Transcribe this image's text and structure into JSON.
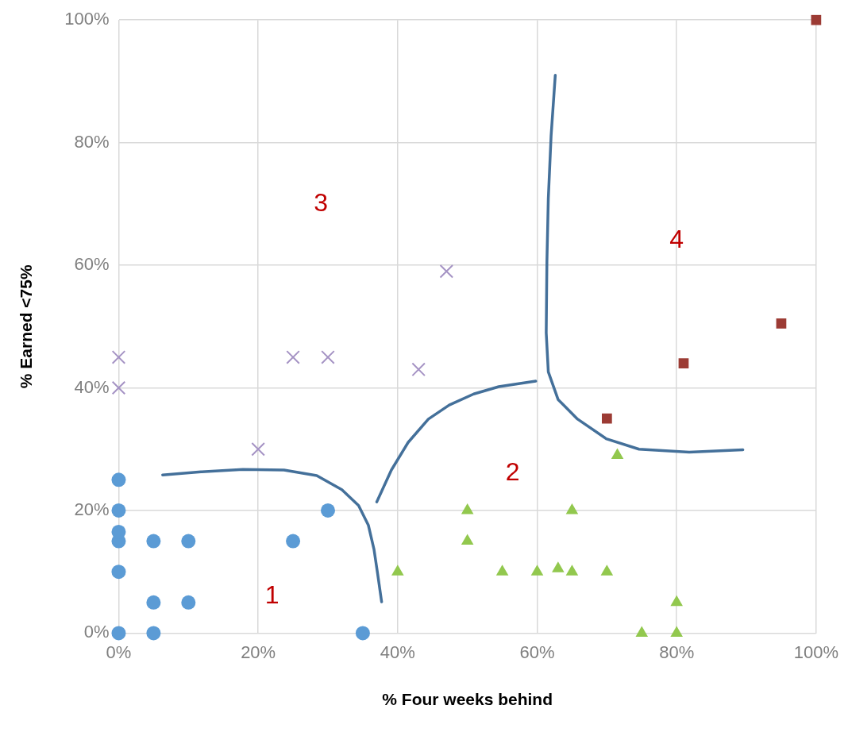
{
  "chart_data": {
    "type": "scatter",
    "xlabel": "% Four weeks behind",
    "ylabel": "% Earned <75%",
    "xlim": [
      0,
      100
    ],
    "ylim": [
      0,
      100
    ],
    "xticks": [
      {
        "value": 0,
        "label": "0%"
      },
      {
        "value": 20,
        "label": "20%"
      },
      {
        "value": 40,
        "label": "40%"
      },
      {
        "value": 60,
        "label": "60%"
      },
      {
        "value": 80,
        "label": "80%"
      },
      {
        "value": 100,
        "label": "100%"
      }
    ],
    "yticks": [
      {
        "value": 0,
        "label": "0%"
      },
      {
        "value": 20,
        "label": "20%"
      },
      {
        "value": 40,
        "label": "40%"
      },
      {
        "value": 60,
        "label": "60%"
      },
      {
        "value": 80,
        "label": "80%"
      },
      {
        "value": 100,
        "label": "100%"
      }
    ],
    "grid": true,
    "legend": false,
    "series": [
      {
        "color": "#5b9bd5",
        "marker": "circle",
        "x": [
          0,
          0,
          0,
          0,
          0,
          0,
          5,
          5,
          5,
          10,
          10,
          25,
          30,
          35
        ],
        "values": [
          0,
          10,
          15,
          16.5,
          20,
          25,
          0,
          5,
          15,
          5,
          15,
          15,
          20,
          0
        ]
      },
      {
        "color": "#a593c4",
        "marker": "cross",
        "x": [
          0,
          0,
          20,
          25,
          30,
          43,
          47
        ],
        "values": [
          45,
          40,
          30,
          45,
          45,
          43,
          59
        ]
      },
      {
        "color": "#92c84e",
        "marker": "triangle",
        "x": [
          40,
          50,
          50,
          55,
          60,
          63,
          65,
          65,
          70,
          71.5,
          75,
          80,
          80
        ],
        "values": [
          10,
          20,
          15,
          10,
          10,
          10.5,
          10,
          20,
          10,
          29,
          0,
          5,
          0
        ]
      },
      {
        "color": "#9c3b34",
        "marker": "square",
        "x": [
          70,
          81,
          95,
          100
        ],
        "values": [
          35,
          44,
          50.5,
          100
        ]
      },
      {
        "type": "line",
        "color": "#44709a",
        "marker": "none",
        "line_style": "solid",
        "x": [
          6.3,
          11.8,
          17.8,
          23.7,
          28.4,
          32,
          34.4,
          35.8,
          36.6,
          37.1,
          37.7
        ],
        "values": [
          25.8,
          26.3,
          26.7,
          26.6,
          25.7,
          23.4,
          20.8,
          17.6,
          13.7,
          9.9,
          5.1
        ]
      },
      {
        "type": "line",
        "color": "#44709a",
        "marker": "none",
        "line_style": "solid",
        "x": [
          37,
          39.1,
          41.5,
          44.4,
          47.4,
          50.9,
          54.5,
          59.8
        ],
        "values": [
          21.4,
          26.6,
          31.1,
          34.9,
          37.2,
          39,
          40.2,
          41.1
        ]
      },
      {
        "type": "line",
        "color": "#44709a",
        "marker": "none",
        "line_style": "solid",
        "x": [
          62.6,
          62,
          61.6,
          61.4,
          61.3,
          61.6,
          63,
          65.8,
          69.9,
          74.6,
          81.8,
          89.5
        ],
        "values": [
          91,
          81.1,
          70.9,
          60.6,
          49,
          42.6,
          38.1,
          34.9,
          31.7,
          30,
          29.5,
          29.9
        ]
      }
    ],
    "annotations": [
      "1",
      "2",
      "3",
      "4"
    ]
  }
}
